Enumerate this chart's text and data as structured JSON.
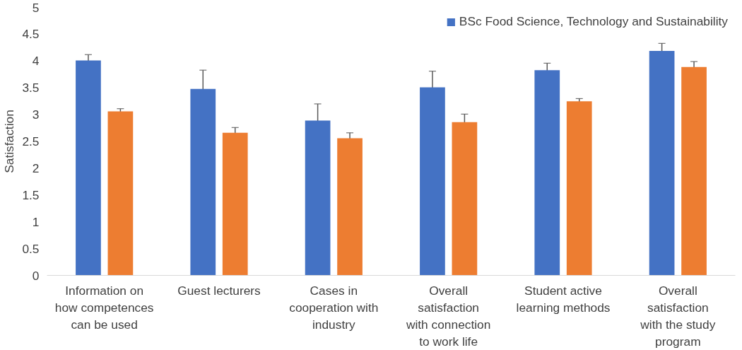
{
  "chart_data": {
    "type": "bar",
    "ylabel": "Satisfaction",
    "categories": [
      "Information on how competences can be used",
      "Guest lecturers",
      "Cases in cooperation with industry",
      "Overall satisfaction with connection to work life",
      "Student active learning methods",
      "Overall satisfaction with the study program"
    ],
    "series": [
      {
        "name": "BSc Food Science, Technology and Sustainability",
        "color": "#4472c4",
        "values": [
          4.01,
          3.48,
          2.89,
          3.51,
          3.83,
          4.19
        ],
        "errors": [
          0.11,
          0.35,
          0.31,
          0.3,
          0.13,
          0.14
        ]
      },
      {
        "color": "#ed7d31",
        "values": [
          3.06,
          2.66,
          2.56,
          2.86,
          3.25,
          3.89
        ],
        "errors": [
          0.05,
          0.1,
          0.1,
          0.15,
          0.05,
          0.1
        ]
      }
    ],
    "ylim": [
      0,
      5
    ],
    "yticks": [
      0,
      0.5,
      1,
      1.5,
      2,
      2.5,
      3,
      3.5,
      4,
      4.5,
      5
    ],
    "grid": false,
    "legend": "top right"
  }
}
